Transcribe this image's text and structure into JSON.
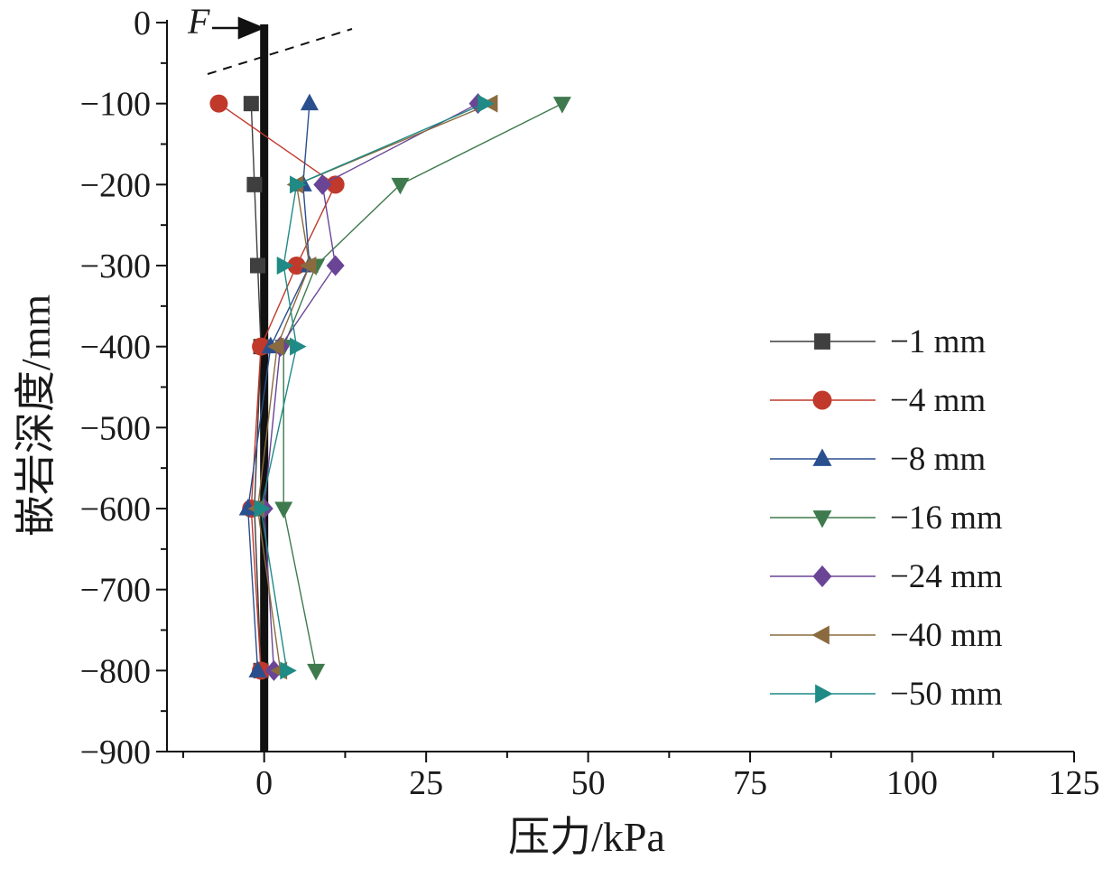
{
  "chart_data": {
    "type": "line",
    "title": "",
    "xlabel": "压力/kPa",
    "ylabel": "嵌岩深度/mm",
    "xlim": [
      -15,
      125
    ],
    "ylim": [
      -900,
      0
    ],
    "x_ticks": [
      0,
      25,
      50,
      75,
      100,
      125
    ],
    "y_ticks": [
      0,
      -100,
      -200,
      -300,
      -400,
      -500,
      -600,
      -700,
      -800,
      -900
    ],
    "x_tick_labels": [
      "0",
      "25",
      "50",
      "75",
      "100",
      "125"
    ],
    "y_tick_labels": [
      "0",
      "−100",
      "−200",
      "−300",
      "−400",
      "−500",
      "−600",
      "−700",
      "−800",
      "−900"
    ],
    "annotation_label": "F",
    "legend_position": "right",
    "depths": [
      -100,
      -200,
      -300,
      -400,
      -600,
      -800
    ],
    "series": [
      {
        "name": "−1 mm",
        "marker": "square",
        "color": "#3f3f3f",
        "x": [
          -2,
          -1.5,
          -1,
          -0.5,
          -1.5,
          -0.5
        ]
      },
      {
        "name": "−4 mm",
        "marker": "circle",
        "color": "#c0392b",
        "x": [
          -7,
          11,
          5,
          -0.5,
          -2,
          -0.5
        ]
      },
      {
        "name": "−8 mm",
        "marker": "triangle-up",
        "color": "#2a4f8e",
        "x": [
          7,
          6,
          7,
          1,
          -2.5,
          -1
        ]
      },
      {
        "name": "−16 mm",
        "marker": "triangle-down",
        "color": "#3e7a4d",
        "x": [
          46,
          21,
          8,
          3,
          3,
          8
        ]
      },
      {
        "name": "−24 mm",
        "marker": "diamond",
        "color": "#6a4596",
        "x": [
          33,
          9,
          11,
          2.5,
          0,
          1.5
        ]
      },
      {
        "name": "−40 mm",
        "marker": "triangle-left",
        "color": "#8a6b3f",
        "x": [
          35,
          5,
          7,
          2,
          -1,
          2.5
        ]
      },
      {
        "name": "−50 mm",
        "marker": "triangle-right",
        "color": "#1f8a86",
        "x": [
          34,
          5,
          3,
          5,
          -0.5,
          3.5
        ]
      }
    ]
  }
}
